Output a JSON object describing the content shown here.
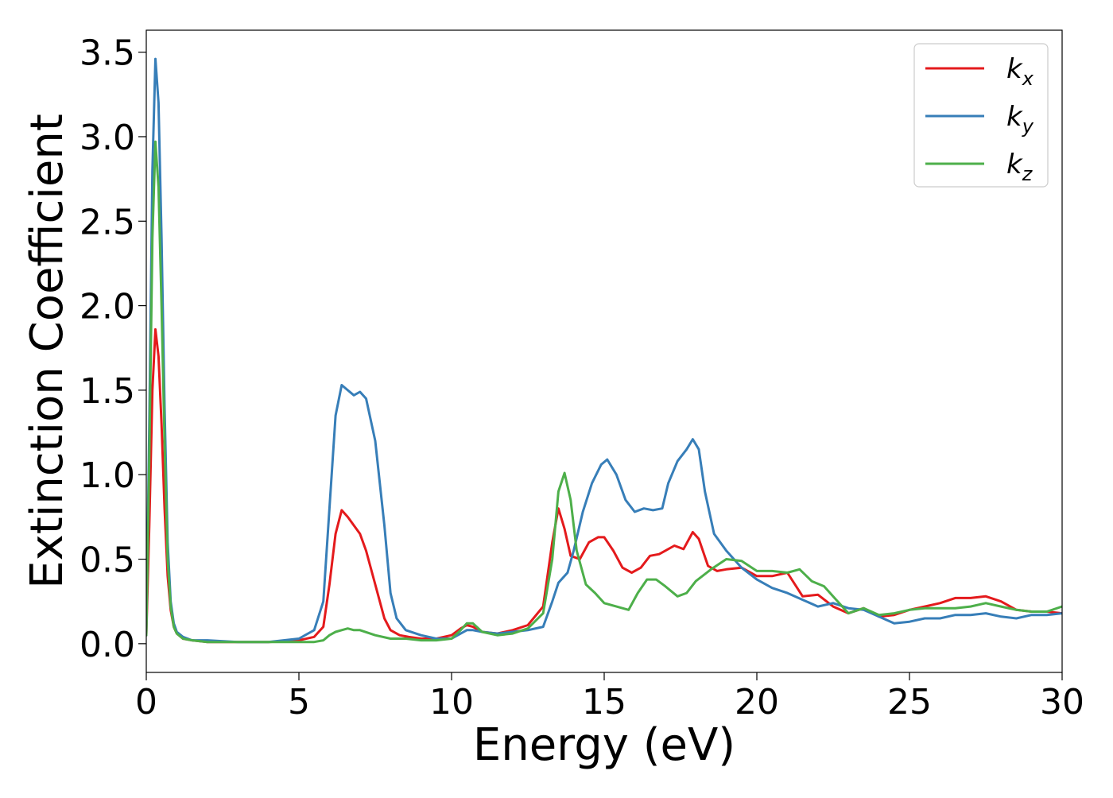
{
  "chart_data": {
    "type": "line",
    "title": "",
    "xlabel": "Energy (eV)",
    "ylabel": "Extinction Coefficient",
    "xlim": [
      0,
      30
    ],
    "ylim": [
      -0.17,
      3.63
    ],
    "xticks": [
      0,
      5,
      10,
      15,
      20,
      25,
      30
    ],
    "xtick_labels": [
      "0",
      "5",
      "10",
      "15",
      "20",
      "25",
      "30"
    ],
    "yticks": [
      0.0,
      0.5,
      1.0,
      1.5,
      2.0,
      2.5,
      3.0,
      3.5
    ],
    "ytick_labels": [
      "0.0",
      "0.5",
      "1.0",
      "1.5",
      "2.0",
      "2.5",
      "3.0",
      "3.5"
    ],
    "grid": false,
    "legend_position": "top-right",
    "series": [
      {
        "name": "k",
        "subscript": "x",
        "color": "#e41a1c",
        "x": [
          0,
          0.1,
          0.2,
          0.3,
          0.4,
          0.5,
          0.6,
          0.7,
          0.8,
          0.9,
          1.0,
          1.2,
          1.5,
          2,
          3,
          4,
          5,
          5.5,
          5.8,
          6.0,
          6.2,
          6.4,
          6.6,
          6.8,
          7.0,
          7.2,
          7.5,
          7.8,
          8.0,
          8.3,
          8.6,
          9.0,
          9.5,
          10.0,
          10.3,
          10.5,
          10.7,
          11.0,
          11.5,
          12.0,
          12.5,
          13.0,
          13.3,
          13.5,
          13.7,
          13.9,
          14.2,
          14.5,
          14.8,
          15.0,
          15.3,
          15.6,
          15.9,
          16.2,
          16.5,
          16.8,
          17.0,
          17.3,
          17.6,
          17.9,
          18.1,
          18.4,
          18.7,
          19.0,
          19.5,
          20.0,
          20.5,
          21.0,
          21.5,
          22.0,
          22.5,
          23.0,
          23.5,
          24.0,
          24.5,
          25.0,
          25.5,
          26.0,
          26.5,
          27.0,
          27.5,
          28.0,
          28.5,
          29.0,
          29.5,
          30.0
        ],
        "values": [
          0.05,
          0.7,
          1.5,
          1.86,
          1.7,
          1.3,
          0.8,
          0.4,
          0.2,
          0.1,
          0.06,
          0.03,
          0.02,
          0.01,
          0.01,
          0.01,
          0.02,
          0.04,
          0.1,
          0.35,
          0.65,
          0.79,
          0.75,
          0.7,
          0.65,
          0.55,
          0.35,
          0.15,
          0.08,
          0.05,
          0.04,
          0.03,
          0.03,
          0.05,
          0.09,
          0.11,
          0.1,
          0.07,
          0.06,
          0.08,
          0.11,
          0.22,
          0.6,
          0.8,
          0.68,
          0.52,
          0.5,
          0.6,
          0.63,
          0.63,
          0.55,
          0.45,
          0.42,
          0.45,
          0.52,
          0.53,
          0.55,
          0.58,
          0.56,
          0.66,
          0.62,
          0.46,
          0.43,
          0.44,
          0.45,
          0.4,
          0.4,
          0.42,
          0.28,
          0.29,
          0.22,
          0.18,
          0.21,
          0.16,
          0.17,
          0.2,
          0.22,
          0.24,
          0.27,
          0.27,
          0.28,
          0.25,
          0.2,
          0.19,
          0.19,
          0.18
        ]
      },
      {
        "name": "k",
        "subscript": "y",
        "color": "#377eb8",
        "x": [
          0,
          0.1,
          0.2,
          0.3,
          0.4,
          0.5,
          0.6,
          0.7,
          0.8,
          0.9,
          1.0,
          1.2,
          1.5,
          2,
          3,
          4,
          5,
          5.5,
          5.8,
          6.0,
          6.2,
          6.4,
          6.6,
          6.8,
          7.0,
          7.2,
          7.5,
          7.8,
          8.0,
          8.2,
          8.5,
          9.0,
          9.5,
          10.0,
          10.3,
          10.5,
          10.7,
          11.0,
          11.5,
          12.0,
          12.5,
          13.0,
          13.3,
          13.5,
          13.8,
          14.0,
          14.3,
          14.6,
          14.9,
          15.1,
          15.4,
          15.7,
          16.0,
          16.3,
          16.6,
          16.9,
          17.1,
          17.4,
          17.7,
          17.9,
          18.1,
          18.3,
          18.6,
          19.0,
          19.5,
          20.0,
          20.5,
          21.0,
          21.5,
          22.0,
          22.5,
          23.0,
          23.5,
          24.0,
          24.5,
          25.0,
          25.5,
          26.0,
          26.5,
          27.0,
          27.5,
          28.0,
          28.5,
          29.0,
          29.5,
          30.0
        ],
        "values": [
          0.05,
          1.3,
          2.8,
          3.46,
          3.2,
          2.4,
          1.4,
          0.6,
          0.25,
          0.12,
          0.07,
          0.04,
          0.02,
          0.02,
          0.01,
          0.01,
          0.03,
          0.08,
          0.25,
          0.8,
          1.35,
          1.53,
          1.5,
          1.47,
          1.49,
          1.45,
          1.2,
          0.7,
          0.3,
          0.15,
          0.08,
          0.05,
          0.03,
          0.03,
          0.06,
          0.08,
          0.08,
          0.07,
          0.06,
          0.07,
          0.08,
          0.1,
          0.25,
          0.36,
          0.42,
          0.55,
          0.78,
          0.95,
          1.06,
          1.09,
          1.0,
          0.85,
          0.78,
          0.8,
          0.79,
          0.8,
          0.95,
          1.08,
          1.15,
          1.21,
          1.15,
          0.9,
          0.65,
          0.55,
          0.45,
          0.38,
          0.33,
          0.3,
          0.26,
          0.22,
          0.24,
          0.21,
          0.2,
          0.16,
          0.12,
          0.13,
          0.15,
          0.15,
          0.17,
          0.17,
          0.18,
          0.16,
          0.15,
          0.17,
          0.17,
          0.18
        ]
      },
      {
        "name": "k",
        "subscript": "z",
        "color": "#4daf4a",
        "x": [
          0,
          0.1,
          0.2,
          0.3,
          0.4,
          0.5,
          0.6,
          0.7,
          0.8,
          0.9,
          1.0,
          1.2,
          1.5,
          2,
          3,
          4,
          5,
          5.5,
          5.8,
          6.0,
          6.2,
          6.4,
          6.6,
          6.8,
          7.0,
          7.5,
          8.0,
          8.5,
          9.0,
          9.5,
          10.0,
          10.3,
          10.5,
          10.7,
          11.0,
          11.5,
          12.0,
          12.5,
          13.0,
          13.3,
          13.5,
          13.7,
          13.9,
          14.1,
          14.4,
          14.7,
          15.0,
          15.4,
          15.8,
          16.1,
          16.4,
          16.7,
          17.0,
          17.4,
          17.7,
          18.0,
          18.5,
          19.0,
          19.5,
          20.0,
          20.5,
          21.0,
          21.4,
          21.8,
          22.2,
          22.6,
          23.0,
          23.5,
          24.0,
          24.5,
          25.0,
          25.5,
          26.0,
          26.5,
          27.0,
          27.5,
          28.0,
          28.5,
          29.0,
          29.5,
          30.0
        ],
        "values": [
          0.05,
          1.1,
          2.4,
          2.97,
          2.7,
          2.0,
          1.2,
          0.5,
          0.22,
          0.1,
          0.06,
          0.03,
          0.02,
          0.01,
          0.01,
          0.01,
          0.01,
          0.01,
          0.02,
          0.05,
          0.07,
          0.08,
          0.09,
          0.08,
          0.08,
          0.05,
          0.03,
          0.03,
          0.02,
          0.02,
          0.03,
          0.08,
          0.12,
          0.12,
          0.07,
          0.05,
          0.06,
          0.09,
          0.18,
          0.5,
          0.9,
          1.01,
          0.85,
          0.55,
          0.35,
          0.3,
          0.24,
          0.22,
          0.2,
          0.3,
          0.38,
          0.38,
          0.34,
          0.28,
          0.3,
          0.37,
          0.44,
          0.5,
          0.49,
          0.43,
          0.43,
          0.42,
          0.44,
          0.37,
          0.34,
          0.26,
          0.18,
          0.21,
          0.17,
          0.18,
          0.2,
          0.21,
          0.21,
          0.21,
          0.22,
          0.24,
          0.22,
          0.2,
          0.19,
          0.19,
          0.22
        ]
      }
    ]
  }
}
